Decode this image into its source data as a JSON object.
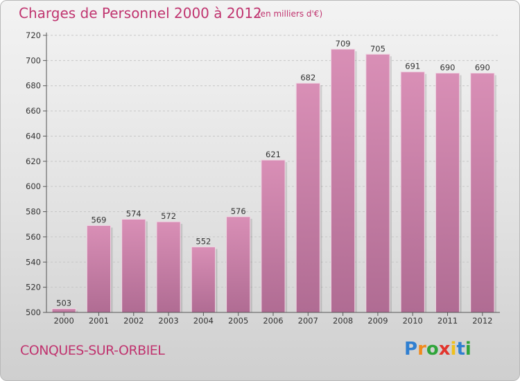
{
  "header": {
    "title": "Charges de Personnel 2000 à 2012",
    "unit": "(en milliers d'€)"
  },
  "footer": {
    "place": "CONQUES-SUR-ORBIEL",
    "logo": [
      "P",
      "r",
      "o",
      "x",
      "i",
      "t",
      "i"
    ]
  },
  "colors": {
    "title": "#c0346f",
    "bar": "#d98fb6",
    "bar_dark": "#b06c93",
    "logo": [
      "#2f7fd1",
      "#f08a1c",
      "#2fa43a",
      "#e2342c",
      "#f0c01c",
      "#2f7fd1",
      "#2fa43a"
    ]
  },
  "chart_data": {
    "type": "bar",
    "categories": [
      "2000",
      "2001",
      "2002",
      "2003",
      "2004",
      "2005",
      "2006",
      "2007",
      "2008",
      "2009",
      "2010",
      "2011",
      "2012"
    ],
    "values": [
      503,
      569,
      574,
      572,
      552,
      576,
      621,
      682,
      709,
      705,
      691,
      690,
      690
    ],
    "yticks": [
      500,
      520,
      540,
      560,
      580,
      600,
      620,
      640,
      660,
      680,
      700,
      720
    ],
    "ylim": [
      500,
      720
    ],
    "grid": true
  }
}
